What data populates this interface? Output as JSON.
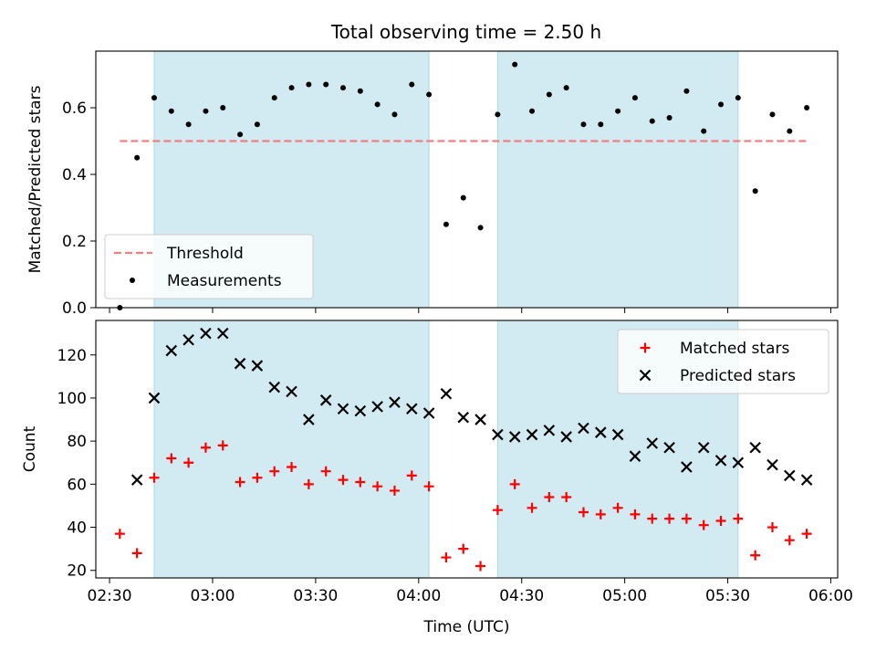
{
  "figure": {
    "title": "Total observing time = 2.50 h"
  },
  "chart_data": [
    {
      "type": "scatter",
      "ylabel": "Matched/Predicted stars",
      "xlabel": "",
      "ylim": [
        0.0,
        0.77
      ],
      "yticks": [
        0.0,
        0.2,
        0.4,
        0.6
      ],
      "ytick_labels": [
        "0.0",
        "0.2",
        "0.4",
        "0.6"
      ],
      "xlim": [
        "02:26",
        "06:02"
      ],
      "xticks": [
        "02:30",
        "03:00",
        "03:30",
        "04:00",
        "04:30",
        "05:00",
        "05:30",
        "06:00"
      ],
      "xtick_labels_shown": false,
      "shaded_intervals": [
        [
          "02:43",
          "04:03"
        ],
        [
          "04:23",
          "05:33"
        ]
      ],
      "shade_color": "#add8e6",
      "grid": false,
      "legend_position": "lower-left",
      "threshold": {
        "name": "Threshold",
        "value": 0.5,
        "x_range": [
          "02:33",
          "05:53"
        ],
        "color": "#f08080",
        "style": "dashed"
      },
      "series": [
        {
          "name": "Measurements",
          "marker": "dot",
          "color": "#000000",
          "x": [
            "02:33",
            "02:38",
            "02:43",
            "02:48",
            "02:53",
            "02:58",
            "03:03",
            "03:08",
            "03:13",
            "03:18",
            "03:23",
            "03:28",
            "03:33",
            "03:38",
            "03:43",
            "03:48",
            "03:53",
            "03:58",
            "04:03",
            "04:08",
            "04:13",
            "04:18",
            "04:23",
            "04:28",
            "04:33",
            "04:38",
            "04:43",
            "04:48",
            "04:53",
            "04:58",
            "05:03",
            "05:08",
            "05:13",
            "05:18",
            "05:23",
            "05:28",
            "05:33",
            "05:38",
            "05:43",
            "05:48",
            "05:53"
          ],
          "values": [
            0.0,
            0.45,
            0.63,
            0.59,
            0.55,
            0.59,
            0.6,
            0.52,
            0.55,
            0.63,
            0.66,
            0.67,
            0.67,
            0.66,
            0.65,
            0.61,
            0.58,
            0.67,
            0.64,
            0.25,
            0.33,
            0.24,
            0.58,
            0.73,
            0.59,
            0.64,
            0.66,
            0.55,
            0.55,
            0.59,
            0.63,
            0.56,
            0.57,
            0.65,
            0.53,
            0.61,
            0.63,
            0.35,
            0.58,
            0.53,
            0.6
          ]
        }
      ]
    },
    {
      "type": "scatter",
      "ylabel": "Count",
      "xlabel": "Time (UTC)",
      "ylim": [
        16.5,
        136
      ],
      "yticks": [
        20,
        40,
        60,
        80,
        100,
        120
      ],
      "ytick_labels": [
        "20",
        "40",
        "60",
        "80",
        "100",
        "120"
      ],
      "xlim": [
        "02:26",
        "06:02"
      ],
      "xticks": [
        "02:30",
        "03:00",
        "03:30",
        "04:00",
        "04:30",
        "05:00",
        "05:30",
        "06:00"
      ],
      "xtick_labels": [
        "02:30",
        "03:00",
        "03:30",
        "04:00",
        "04:30",
        "05:00",
        "05:30",
        "06:00"
      ],
      "shaded_intervals": [
        [
          "02:43",
          "04:03"
        ],
        [
          "04:23",
          "05:33"
        ]
      ],
      "shade_color": "#add8e6",
      "grid": false,
      "legend_position": "top-right",
      "series": [
        {
          "name": "Matched stars",
          "marker": "plus",
          "color": "#ff0000",
          "x": [
            "02:33",
            "02:38",
            "02:43",
            "02:48",
            "02:53",
            "02:58",
            "03:03",
            "03:08",
            "03:13",
            "03:18",
            "03:23",
            "03:28",
            "03:33",
            "03:38",
            "03:43",
            "03:48",
            "03:53",
            "03:58",
            "04:03",
            "04:08",
            "04:13",
            "04:18",
            "04:23",
            "04:28",
            "04:33",
            "04:38",
            "04:43",
            "04:48",
            "04:53",
            "04:58",
            "05:03",
            "05:08",
            "05:13",
            "05:18",
            "05:23",
            "05:28",
            "05:33",
            "05:38",
            "05:43",
            "05:48",
            "05:53"
          ],
          "values": [
            37,
            28,
            63,
            72,
            70,
            77,
            78,
            61,
            63,
            66,
            68,
            60,
            66,
            62,
            61,
            59,
            57,
            64,
            59,
            26,
            30,
            22,
            48,
            60,
            49,
            54,
            54,
            47,
            46,
            49,
            46,
            44,
            44,
            44,
            41,
            43,
            44,
            27,
            40,
            34,
            37
          ]
        },
        {
          "name": "Predicted stars",
          "marker": "x",
          "color": "#000000",
          "x": [
            "02:38",
            "02:43",
            "02:48",
            "02:53",
            "02:58",
            "03:03",
            "03:08",
            "03:13",
            "03:18",
            "03:23",
            "03:28",
            "03:33",
            "03:38",
            "03:43",
            "03:48",
            "03:53",
            "03:58",
            "04:03",
            "04:08",
            "04:13",
            "04:18",
            "04:23",
            "04:28",
            "04:33",
            "04:38",
            "04:43",
            "04:48",
            "04:53",
            "04:58",
            "05:03",
            "05:08",
            "05:13",
            "05:18",
            "05:23",
            "05:28",
            "05:33",
            "05:38",
            "05:43",
            "05:48",
            "05:53"
          ],
          "values": [
            62,
            100,
            122,
            127,
            130,
            130,
            116,
            115,
            105,
            103,
            90,
            99,
            95,
            94,
            96,
            98,
            95,
            93,
            102,
            91,
            90,
            83,
            82,
            83,
            85,
            82,
            86,
            84,
            83,
            73,
            79,
            77,
            68,
            77,
            71,
            70,
            77,
            69,
            64,
            62
          ]
        }
      ]
    }
  ]
}
